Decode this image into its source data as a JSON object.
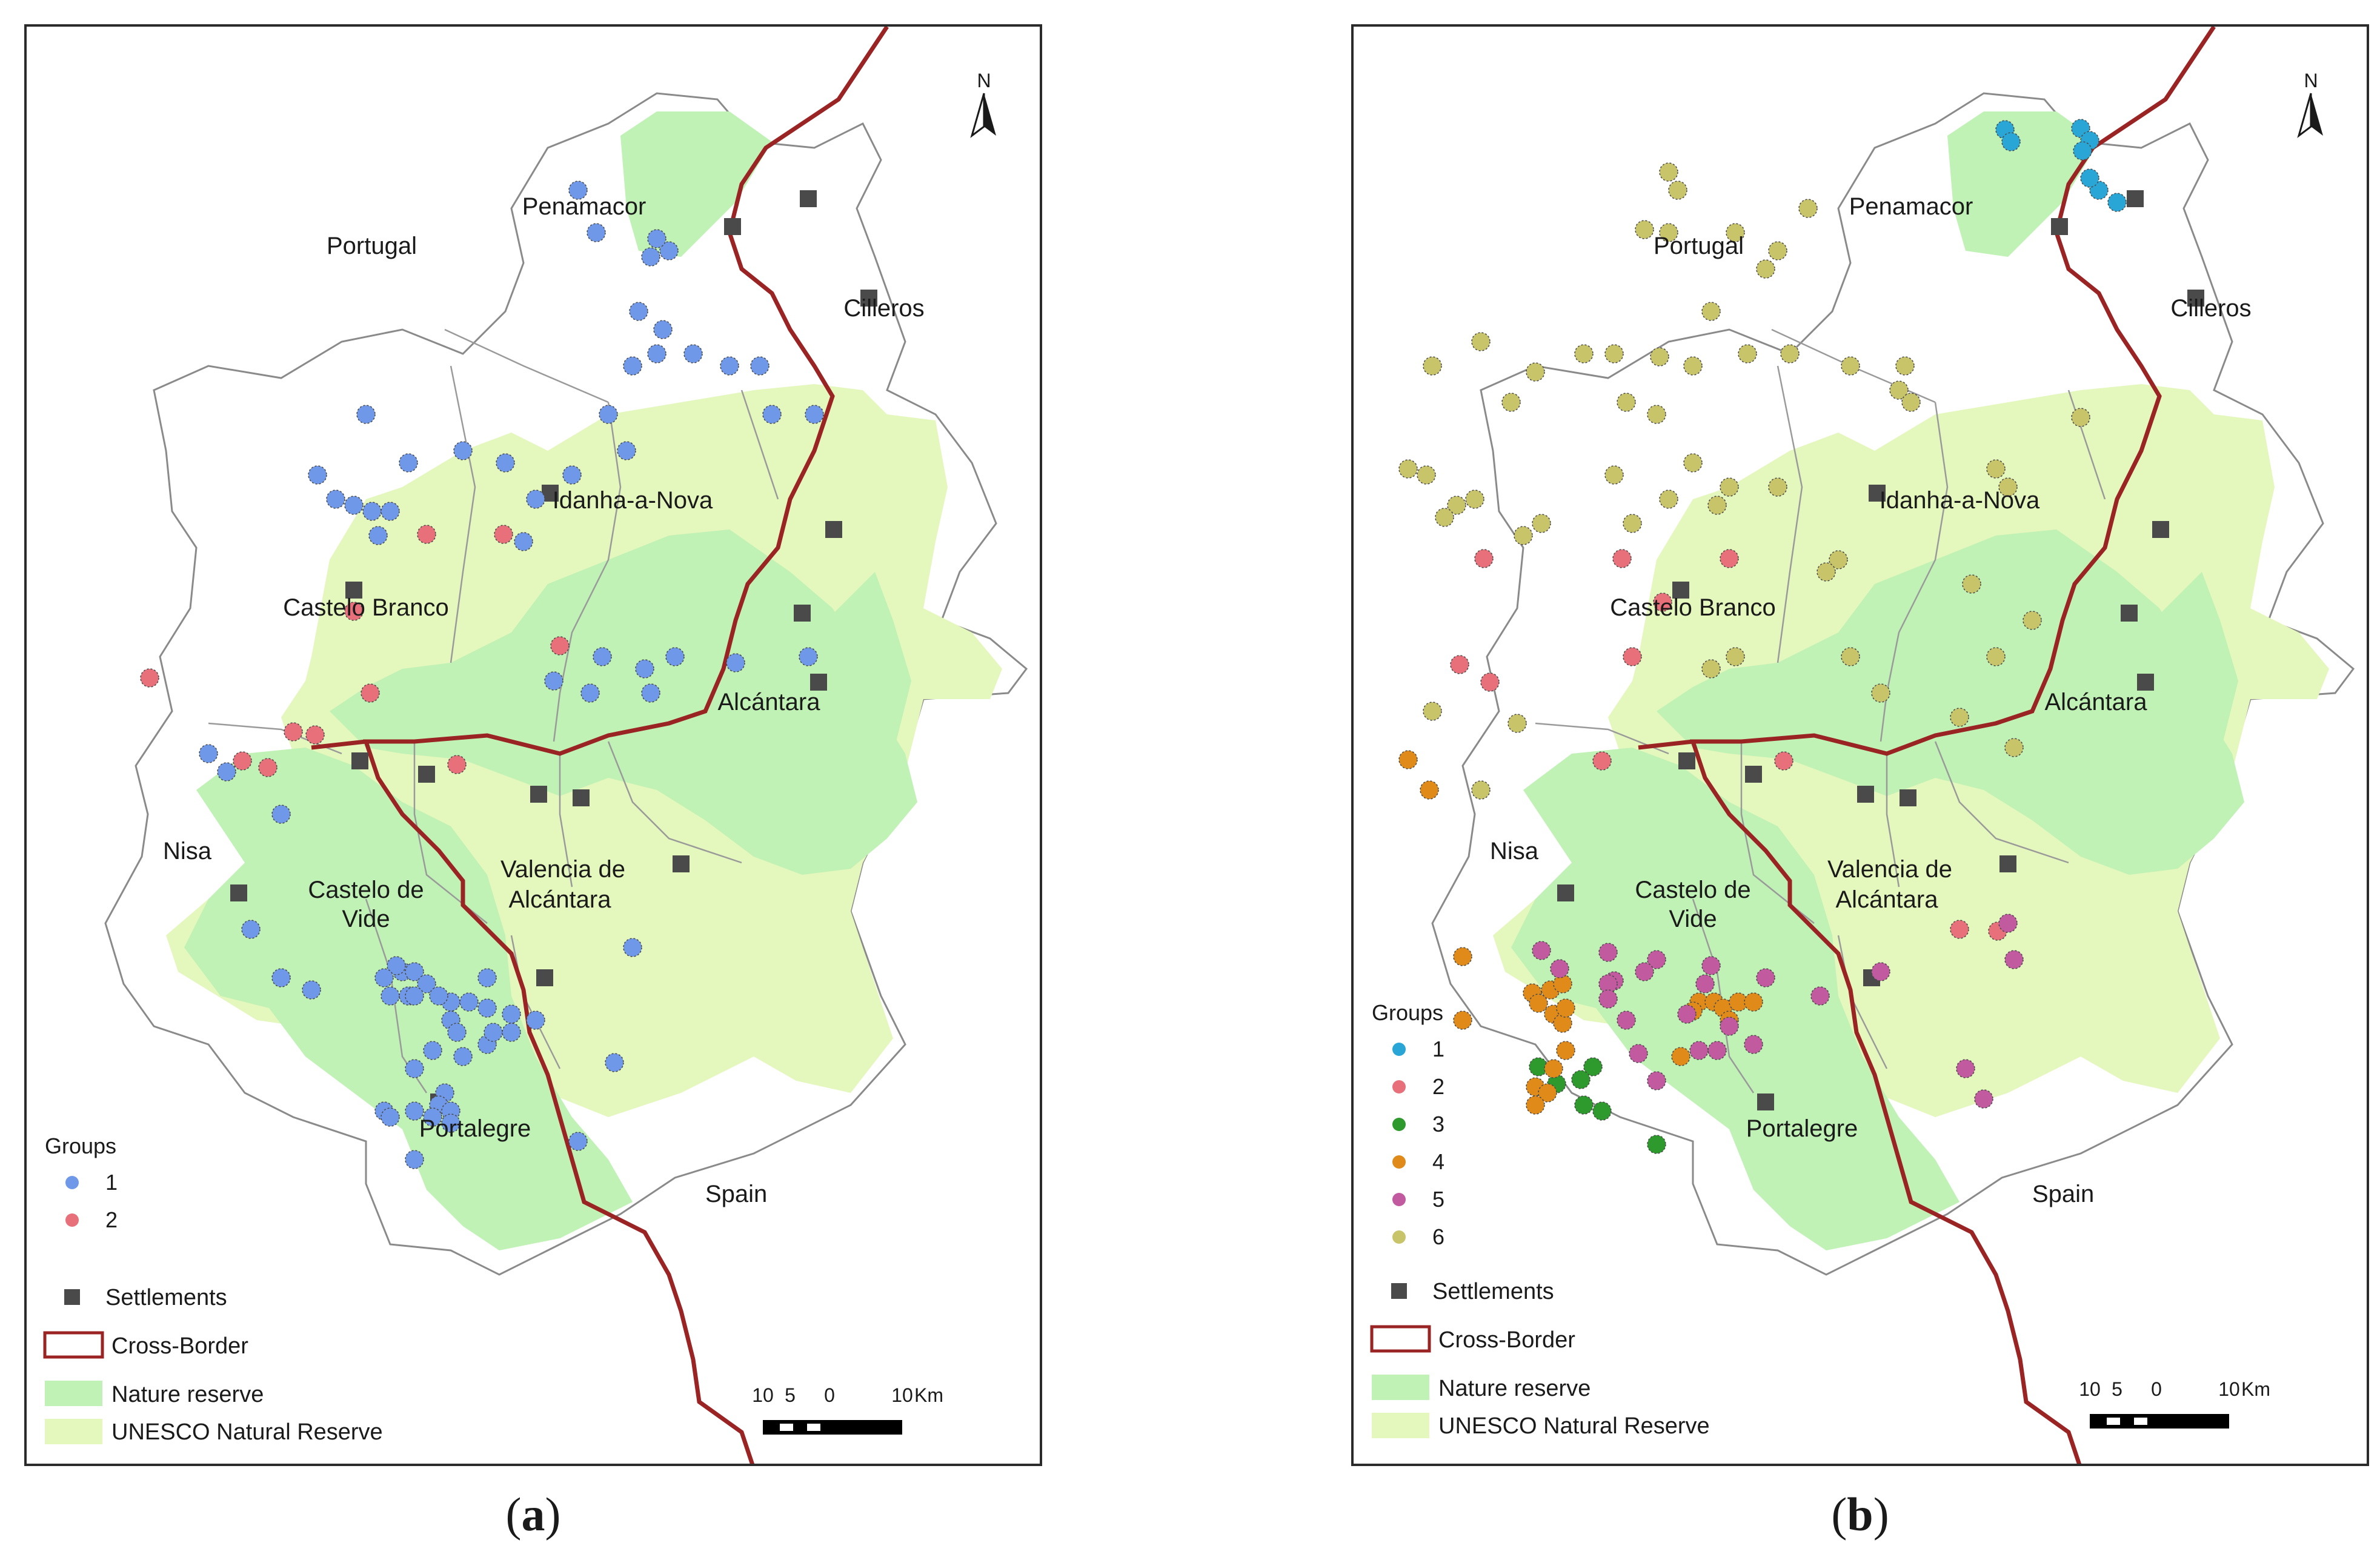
{
  "panels": [
    {
      "id": "a",
      "caption_label": "a",
      "labels": {
        "country_portugal": "Portugal",
        "country_spain": "Spain",
        "north": "N",
        "places": [
          "Penamacor",
          "Cilleros",
          "Idanha-a-Nova",
          "Castelo Branco",
          "Alcántara",
          "Nisa",
          "Castelo de",
          "Vide",
          "Valencia de",
          "Alcántara",
          "Portalegre"
        ]
      },
      "legend": {
        "groups_title": "Groups",
        "groups": [
          {
            "label": "1",
            "color": "#6f98e8"
          },
          {
            "label": "2",
            "color": "#e8707a"
          }
        ],
        "settlements": "Settlements",
        "cross_border": "Cross-Border",
        "nature_reserve": "Nature reserve",
        "unesco": "UNESCO Natural Reserve"
      },
      "scale": {
        "ticks": [
          "10",
          "5",
          "0",
          "10"
        ],
        "unit": "Km"
      }
    },
    {
      "id": "b",
      "caption_label": "b",
      "labels": {
        "country_portugal": "Portugal",
        "country_spain": "Spain",
        "north": "N",
        "places": [
          "Penamacor",
          "Cilleros",
          "Idanha-a-Nova",
          "Castelo Branco",
          "Alcántara",
          "Nisa",
          "Castelo de",
          "Vide",
          "Valencia de",
          "Alcántara",
          "Portalegre"
        ]
      },
      "legend": {
        "groups_title": "Groups",
        "groups": [
          {
            "label": "1",
            "color": "#2aa6d6"
          },
          {
            "label": "2",
            "color": "#e8707a"
          },
          {
            "label": "3",
            "color": "#2e9a2e"
          },
          {
            "label": "4",
            "color": "#e08a1a"
          },
          {
            "label": "5",
            "color": "#c25aa0"
          },
          {
            "label": "6",
            "color": "#c8c46a"
          }
        ],
        "settlements": "Settlements",
        "cross_border": "Cross-Border",
        "nature_reserve": "Nature reserve",
        "unesco": "UNESCO Natural Reserve"
      },
      "scale": {
        "ticks": [
          "10",
          "5",
          "0",
          "10"
        ],
        "unit": "Km"
      }
    }
  ],
  "colors": {
    "nature_reserve": "#bff2b4",
    "unesco": "#e4f7bd",
    "border": "#9a2424",
    "settlement": "#4a4a4a",
    "outline": "#8a8a8a"
  }
}
